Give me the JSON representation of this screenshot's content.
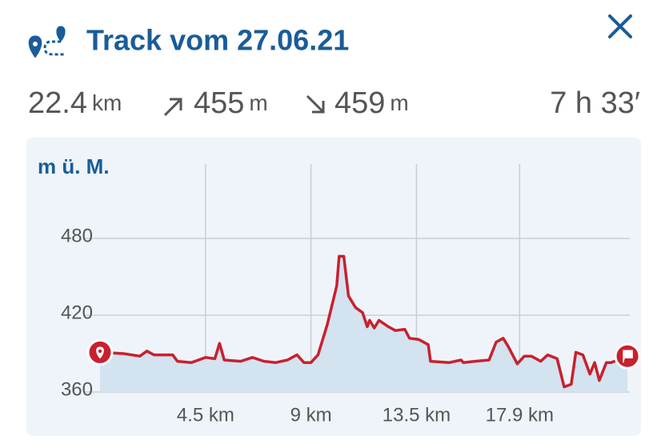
{
  "header": {
    "title": "Track vom 27.06.21"
  },
  "stats": {
    "distance": {
      "value": "22.4",
      "unit": "km"
    },
    "ascent": {
      "value": "455",
      "unit": "m"
    },
    "descent": {
      "value": "459",
      "unit": "m"
    },
    "duration": "7 h 33′"
  },
  "chart_data": {
    "type": "area",
    "ylabel": "m ü. M.",
    "x": [
      0,
      1.0,
      1.7,
      2.0,
      2.3,
      3.1,
      3.3,
      3.9,
      4.5,
      4.9,
      5.1,
      5.3,
      6.0,
      6.5,
      7.0,
      7.5,
      8.0,
      8.4,
      8.7,
      9.0,
      9.3,
      9.7,
      10.1,
      10.2,
      10.4,
      10.6,
      10.9,
      11.2,
      11.4,
      11.5,
      11.7,
      11.9,
      12.3,
      12.6,
      13.0,
      13.2,
      13.6,
      14.0,
      14.1,
      14.9,
      15.4,
      15.5,
      16.0,
      16.6,
      16.9,
      17.2,
      17.4,
      17.8,
      18.1,
      18.4,
      18.8,
      19.1,
      19.5,
      19.8,
      20.1,
      20.3,
      20.6,
      20.9,
      21.1,
      21.3,
      21.6,
      21.8,
      22.5
    ],
    "values": [
      391,
      390,
      388,
      392,
      389,
      389,
      384,
      383,
      387,
      386,
      398,
      385,
      384,
      387,
      384,
      383,
      385,
      389,
      383,
      383,
      389,
      413,
      443,
      466,
      466,
      435,
      426,
      422,
      411,
      416,
      410,
      416,
      411,
      408,
      409,
      402,
      401,
      397,
      384,
      383,
      385,
      383,
      384,
      385,
      399,
      402,
      396,
      382,
      388,
      388,
      384,
      389,
      386,
      364,
      366,
      391,
      389,
      374,
      383,
      369,
      383,
      383,
      388
    ],
    "color": "#c8202e",
    "fill": "#d3e3f0",
    "xlim": [
      0,
      22.6
    ],
    "ylim": [
      360,
      540
    ],
    "xticks": [
      {
        "value": 4.5,
        "label": "4.5 km"
      },
      {
        "value": 9,
        "label": "9 km"
      },
      {
        "value": 13.5,
        "label": "13.5 km"
      },
      {
        "value": 17.9,
        "label": "17.9 km"
      }
    ],
    "yticks": [
      360,
      420,
      480
    ],
    "grid": true
  }
}
